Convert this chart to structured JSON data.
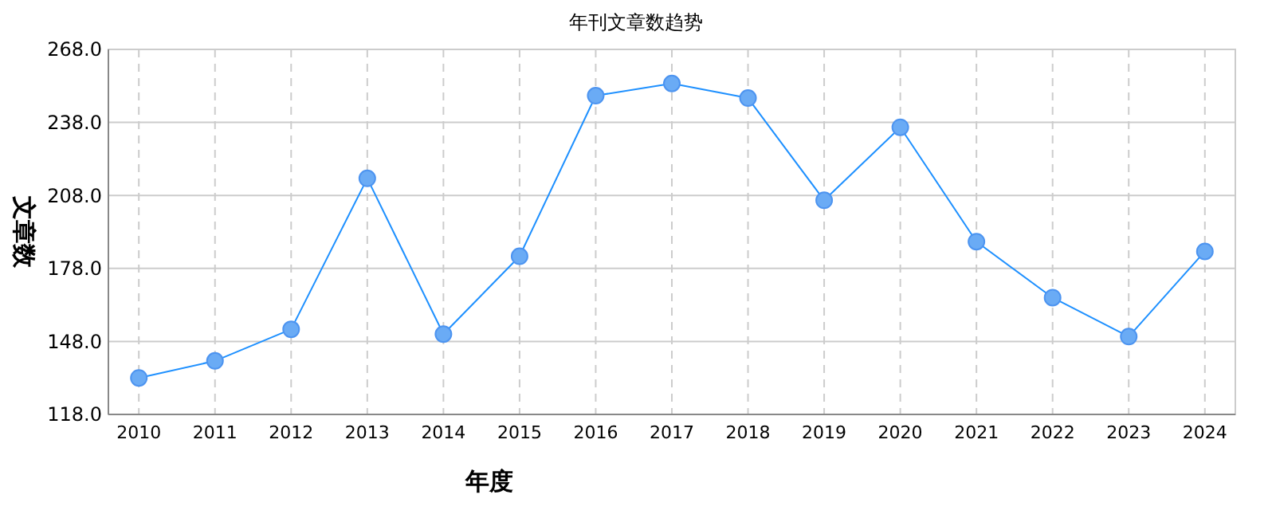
{
  "chart_data": {
    "type": "line",
    "title": "年刊文章数趋势",
    "xlabel": "年度",
    "ylabel": "文章数",
    "categories": [
      "2010",
      "2011",
      "2012",
      "2013",
      "2014",
      "2015",
      "2016",
      "2017",
      "2018",
      "2019",
      "2020",
      "2021",
      "2022",
      "2023",
      "2024"
    ],
    "series": [
      {
        "color": "#1e90ff",
        "values": [
          133,
          140,
          153,
          215,
          151,
          183,
          249,
          254,
          248,
          206,
          236,
          189,
          166,
          150,
          185
        ]
      }
    ],
    "ylim": [
      118,
      268
    ],
    "yticks": [
      {
        "value": 118,
        "label": "118.0"
      },
      {
        "value": 148,
        "label": "148.0"
      },
      {
        "value": 178,
        "label": "178.0"
      },
      {
        "value": 208,
        "label": "208.0"
      },
      {
        "value": 238,
        "label": "238.0"
      },
      {
        "value": 268,
        "label": "268.0"
      }
    ],
    "grid": true,
    "marker": "circle",
    "line_style": "solid"
  }
}
